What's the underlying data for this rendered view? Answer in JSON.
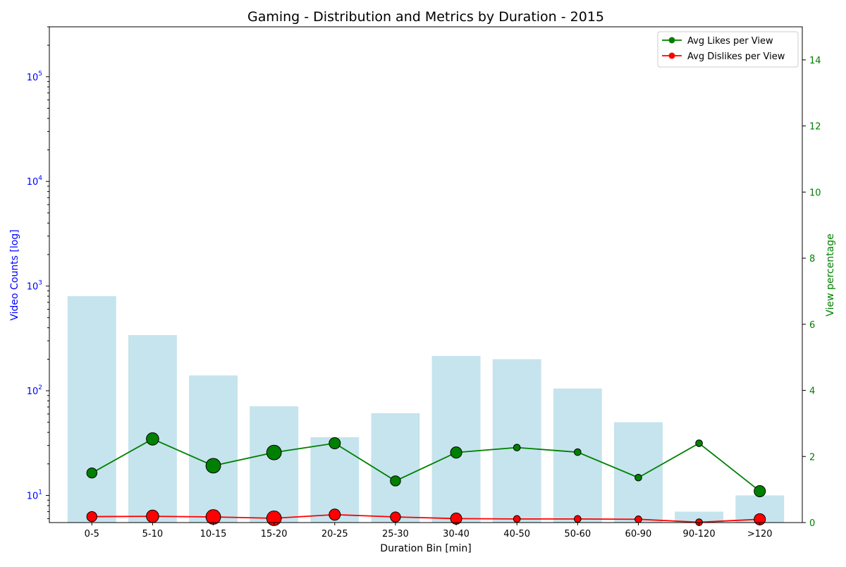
{
  "chart_data": {
    "type": "bar",
    "title": "Gaming - Distribution and Metrics by Duration - 2015",
    "xlabel": "Duration Bin [min]",
    "ylabel": "Video Counts [log]",
    "y2label": "View percentage",
    "categories": [
      "0-5",
      "5-10",
      "10-15",
      "15-20",
      "20-25",
      "25-30",
      "30-40",
      "40-50",
      "50-60",
      "60-90",
      "90-120",
      ">120"
    ],
    "counts": [
      800,
      340,
      140,
      71,
      36,
      61,
      215,
      200,
      105,
      50,
      7,
      10
    ],
    "yscale": "log",
    "ylim": [
      5.5,
      300000
    ],
    "y_tick_exponents": [
      1,
      2,
      3,
      4,
      5
    ],
    "y_tick_base": "10",
    "y2lim": [
      0,
      15
    ],
    "y2_ticks": [
      "0",
      "2",
      "4",
      "6",
      "8",
      "10",
      "12",
      "14"
    ],
    "series": [
      {
        "name": "Avg Likes per View",
        "color": "#008000",
        "values": [
          1.5,
          2.53,
          1.72,
          2.12,
          2.4,
          1.26,
          2.12,
          2.27,
          2.13,
          1.36,
          2.4,
          0.95
        ],
        "marker_size": [
          3,
          4,
          5,
          5,
          3.5,
          3,
          3.5,
          1.5,
          1.5,
          1.5,
          1.5,
          3.5
        ]
      },
      {
        "name": "Avg Dislikes per View",
        "color": "#ff0000",
        "values": [
          0.18,
          0.19,
          0.17,
          0.13,
          0.24,
          0.17,
          0.12,
          0.11,
          0.11,
          0.1,
          0.01,
          0.1
        ],
        "marker_size": [
          3,
          4,
          5,
          5,
          3.5,
          3,
          3.5,
          1.5,
          1.5,
          1.5,
          1.5,
          3.5
        ]
      }
    ],
    "bar_color": "#add8e6",
    "left_axis_color": "#0000ff",
    "right_axis_color": "#008000",
    "grid": false,
    "legend_position": "top-right"
  }
}
